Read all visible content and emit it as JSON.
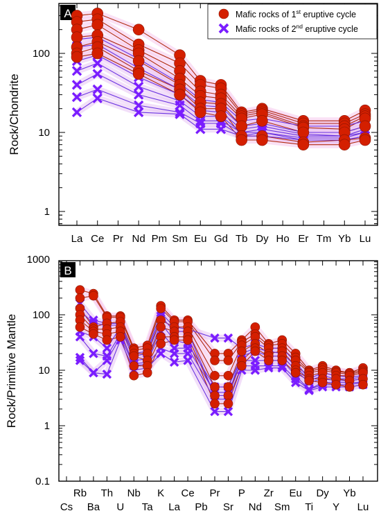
{
  "chart_data": [
    {
      "panel_label": "A",
      "type": "line",
      "ylabel": "Rock/Chondrite",
      "yscale": "log",
      "ylim": [
        0.3,
        800
      ],
      "ytick_labels": [
        "1",
        "10",
        "100"
      ],
      "categories": [
        "La",
        "Ce",
        "Pr",
        "Nd",
        "Pm",
        "Sm",
        "Eu",
        "Gd",
        "Tb",
        "Dy",
        "Ho",
        "Er",
        "Tm",
        "Yb",
        "Lu"
      ],
      "legend": {
        "position": "top-right",
        "entries": [
          {
            "marker": "circle",
            "prefix": "Mafic rocks of 1",
            "sup": "st",
            "suffix": " eruptive cycle"
          },
          {
            "marker": "cross",
            "prefix": "Mafic rocks of 2",
            "sup": "nd",
            "suffix": " eruptive cycle"
          }
        ]
      },
      "series": [
        {
          "group": "cycle1",
          "values": [
            300,
            320,
            null,
            200,
            null,
            95,
            45,
            40,
            18,
            20,
            null,
            14,
            null,
            14,
            19
          ]
        },
        {
          "group": "cycle1",
          "values": [
            250,
            270,
            null,
            130,
            null,
            75,
            40,
            36,
            17,
            19,
            null,
            13,
            null,
            13,
            17
          ]
        },
        {
          "group": "cycle1",
          "values": [
            200,
            230,
            null,
            110,
            null,
            60,
            33,
            30,
            16,
            18,
            null,
            12,
            null,
            12,
            16
          ]
        },
        {
          "group": "cycle1",
          "values": [
            160,
            170,
            null,
            100,
            null,
            48,
            29,
            27,
            15,
            17,
            null,
            11.5,
            null,
            11,
            15
          ]
        },
        {
          "group": "cycle1",
          "values": [
            120,
            140,
            null,
            80,
            null,
            40,
            24,
            23,
            12,
            14,
            null,
            10,
            null,
            10,
            12
          ]
        },
        {
          "group": "cycle1",
          "values": [
            100,
            120,
            null,
            60,
            null,
            35,
            20,
            20,
            9,
            9,
            null,
            7.5,
            null,
            8,
            8.5
          ]
        },
        {
          "group": "cycle1",
          "values": [
            90,
            100,
            null,
            55,
            null,
            30,
            18,
            16,
            8,
            8,
            null,
            7,
            null,
            7,
            8
          ]
        },
        {
          "group": "cycle2",
          "values": [
            150,
            160,
            null,
            85,
            null,
            42,
            26,
            24,
            14,
            15,
            null,
            12,
            null,
            12,
            14
          ]
        },
        {
          "group": "cycle2",
          "values": [
            120,
            130,
            null,
            65,
            null,
            35,
            22,
            21,
            12,
            13,
            null,
            10,
            null,
            10,
            12
          ]
        },
        {
          "group": "cycle2",
          "values": [
            80,
            95,
            null,
            50,
            null,
            30,
            19,
            18,
            11,
            12,
            null,
            9.5,
            null,
            9,
            11
          ]
        },
        {
          "group": "cycle2",
          "values": [
            60,
            75,
            null,
            38,
            null,
            25,
            16,
            16,
            10,
            11,
            null,
            9,
            null,
            9,
            10
          ]
        },
        {
          "group": "cycle2",
          "values": [
            40,
            55,
            null,
            30,
            null,
            22,
            14,
            14,
            10,
            10,
            null,
            8.5,
            null,
            8.5,
            10
          ]
        },
        {
          "group": "cycle2",
          "values": [
            28,
            35,
            null,
            22,
            null,
            18,
            13,
            13,
            9,
            10,
            null,
            8,
            null,
            8,
            9
          ]
        },
        {
          "group": "cycle2",
          "values": [
            18,
            27,
            null,
            18,
            null,
            17,
            11,
            11,
            9,
            9,
            null,
            8,
            null,
            8,
            9
          ]
        }
      ]
    },
    {
      "panel_label": "B",
      "type": "line",
      "ylabel": "Rock/Primitive Mantle",
      "yscale": "log",
      "ylim": [
        0.1,
        1000
      ],
      "ytick_labels": [
        "0.1",
        "1",
        "10",
        "100",
        "1000"
      ],
      "categories": [
        "Cs",
        "Rb",
        "Ba",
        "Th",
        "U",
        "Nb",
        "Ta",
        "K",
        "La",
        "Ce",
        "Pb",
        "Pr",
        "Sr",
        "P",
        "Nd",
        "Zr",
        "Sm",
        "Eu",
        "Ti",
        "Dy",
        "Y",
        "Yb",
        "Lu"
      ],
      "series": [
        {
          "group": "cycle1",
          "values": [
            null,
            280,
            240,
            95,
            95,
            25,
            28,
            145,
            80,
            80,
            null,
            20,
            20,
            35,
            60,
            30,
            35,
            20,
            10,
            12,
            10,
            9,
            11
          ]
        },
        {
          "group": "cycle1",
          "values": [
            null,
            200,
            220,
            90,
            90,
            23,
            25,
            130,
            75,
            75,
            null,
            15,
            15,
            32,
            45,
            28,
            30,
            17,
            9.5,
            11,
            9.5,
            9,
            10
          ]
        },
        {
          "group": "cycle1",
          "values": [
            null,
            130,
            60,
            70,
            75,
            20,
            20,
            80,
            60,
            60,
            null,
            8,
            8,
            28,
            40,
            25,
            25,
            15,
            9,
            10,
            9,
            8.5,
            9.5
          ]
        },
        {
          "group": "cycle1",
          "values": [
            null,
            100,
            55,
            55,
            60,
            18,
            15,
            60,
            50,
            50,
            null,
            5,
            5,
            22,
            30,
            20,
            22,
            12,
            8,
            9,
            8,
            8,
            9
          ]
        },
        {
          "group": "cycle1",
          "values": [
            null,
            80,
            50,
            45,
            50,
            12,
            12,
            40,
            40,
            40,
            null,
            3.5,
            3.5,
            15,
            25,
            18,
            18,
            10,
            7,
            7,
            7,
            6.5,
            7
          ]
        },
        {
          "group": "cycle1",
          "values": [
            null,
            60,
            45,
            35,
            40,
            8,
            9,
            30,
            35,
            35,
            null,
            2.5,
            2.5,
            12,
            22,
            15,
            15,
            9,
            6.5,
            6,
            5.5,
            5,
            5.5
          ]
        },
        {
          "group": "cycle2",
          "values": [
            null,
            160,
            80,
            70,
            70,
            20,
            22,
            110,
            60,
            55,
            null,
            38,
            38,
            25,
            30,
            25,
            25,
            14,
            7,
            9,
            8,
            7.5,
            8
          ]
        },
        {
          "group": "cycle2",
          "values": [
            null,
            120,
            70,
            65,
            65,
            18,
            20,
            95,
            50,
            50,
            null,
            3.5,
            3.5,
            20,
            25,
            22,
            20,
            12,
            6.5,
            8,
            7,
            7,
            7.5
          ]
        },
        {
          "group": "cycle2",
          "values": [
            null,
            50,
            40,
            25,
            60,
            15,
            16,
            70,
            35,
            30,
            null,
            5,
            5,
            18,
            22,
            18,
            18,
            10,
            6,
            7,
            6.5,
            6.5,
            7
          ]
        },
        {
          "group": "cycle2",
          "values": [
            null,
            40,
            20,
            18,
            45,
            13,
            14,
            50,
            25,
            25,
            null,
            4,
            4,
            15,
            15,
            15,
            15,
            8,
            4.5,
            6,
            6,
            6,
            6
          ]
        },
        {
          "group": "cycle2",
          "values": [
            null,
            17,
            9,
            15,
            40,
            12,
            13,
            25,
            20,
            20,
            null,
            3,
            3,
            12,
            12,
            12,
            12,
            7,
            4.5,
            5.5,
            5.5,
            5.5,
            6
          ]
        },
        {
          "group": "cycle2",
          "values": [
            null,
            15,
            9,
            8.5,
            35,
            10,
            11,
            20,
            14,
            15,
            null,
            1.8,
            1.8,
            10,
            10,
            11,
            11,
            6,
            4.3,
            5,
            5,
            5,
            5.5
          ]
        }
      ]
    }
  ],
  "colors": {
    "cycle1_marker": "#d41f00",
    "cycle1_line": "#b02a10",
    "cycle1_halo": "#f6c8ec",
    "cycle2_marker": "#7a1dff",
    "cycle2_line": "#6a33e0",
    "cycle2_halo": "#e8c4f4",
    "axis": "#000000",
    "panel_label_bg": "#000000",
    "panel_label_text": "#ffffff"
  }
}
